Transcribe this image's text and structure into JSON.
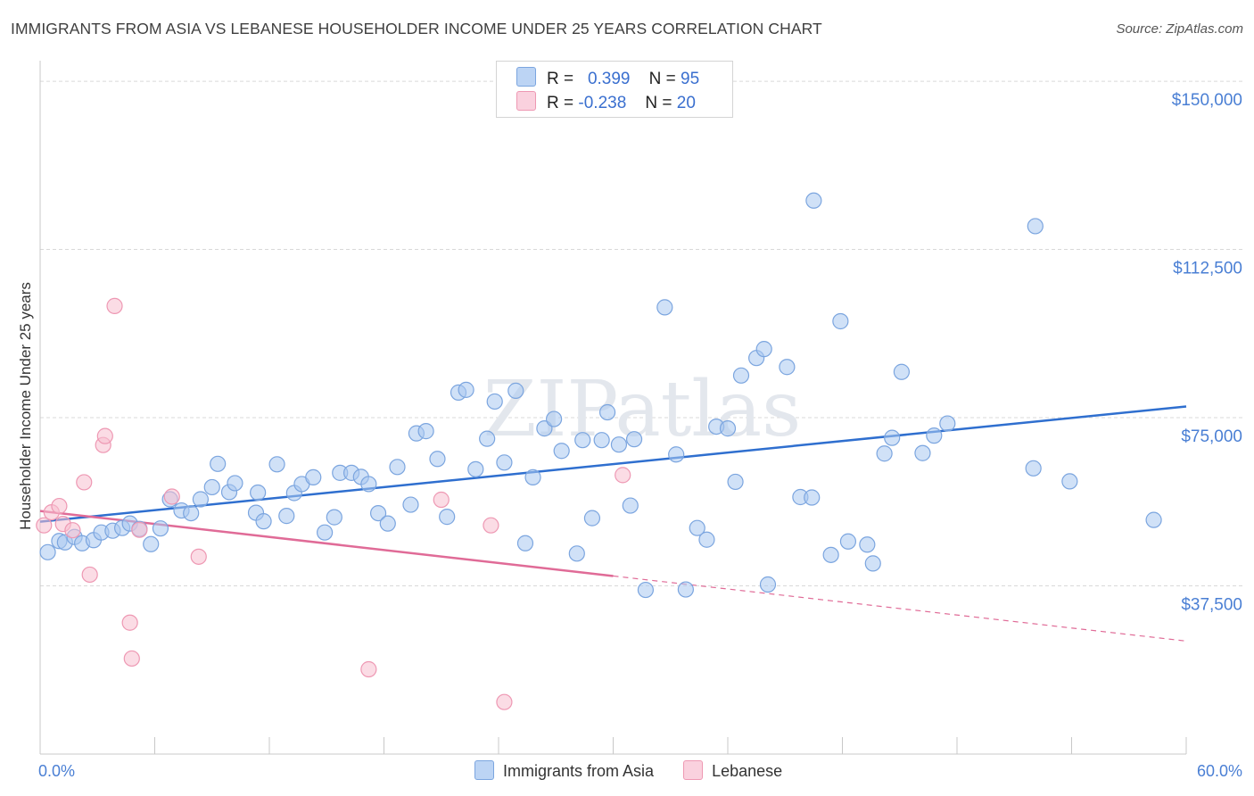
{
  "title": "IMMIGRANTS FROM ASIA VS LEBANESE HOUSEHOLDER INCOME UNDER 25 YEARS CORRELATION CHART",
  "source": "Source: ZipAtlas.com",
  "watermark": "ZIPatlas",
  "legend": {
    "rows": [
      {
        "r_label": "R =",
        "r_value": "0.399",
        "n_label": "N =",
        "n_value": "95"
      },
      {
        "r_label": "R =",
        "r_value": "-0.238",
        "n_label": "N =",
        "n_value": "20"
      }
    ]
  },
  "bottom_legend": {
    "items": [
      {
        "label": "Immigrants from Asia"
      },
      {
        "label": "Lebanese"
      }
    ]
  },
  "colors": {
    "asia_fill": "#a9c8f0",
    "asia_stroke": "#7ba5df",
    "asia_line": "#2f6fcf",
    "leb_fill": "#f7bfd0",
    "leb_stroke": "#ee98b3",
    "leb_line": "#e06b97",
    "tick_label": "#4a7fd4",
    "grid": "#d9d9d9"
  },
  "chart_data": {
    "type": "scatter",
    "title": "IMMIGRANTS FROM ASIA VS LEBANESE HOUSEHOLDER INCOME UNDER 25 YEARS CORRELATION CHART",
    "xlabel": "",
    "ylabel": "Householder Income Under 25 years",
    "xlim": [
      0,
      60
    ],
    "ylim": [
      0,
      153000
    ],
    "x_tick_labels": [
      "0.0%",
      "60.0%"
    ],
    "y_ticks": [
      37500,
      75000,
      112500,
      150000
    ],
    "y_tick_labels": [
      "$37,500",
      "$75,000",
      "$112,500",
      "$150,000"
    ],
    "grid": true,
    "legend_position": "top-center",
    "series": [
      {
        "name": "Immigrants from Asia",
        "points": [
          [
            0.4,
            45000
          ],
          [
            1.0,
            47500
          ],
          [
            1.3,
            47200
          ],
          [
            1.8,
            48400
          ],
          [
            2.2,
            47000
          ],
          [
            2.8,
            47700
          ],
          [
            3.2,
            49400
          ],
          [
            3.8,
            49800
          ],
          [
            4.3,
            50400
          ],
          [
            4.7,
            51400
          ],
          [
            5.2,
            50200
          ],
          [
            5.8,
            46800
          ],
          [
            6.3,
            50300
          ],
          [
            6.8,
            56800
          ],
          [
            7.4,
            54300
          ],
          [
            7.9,
            53700
          ],
          [
            8.4,
            56800
          ],
          [
            9.0,
            59500
          ],
          [
            9.3,
            64700
          ],
          [
            9.9,
            58400
          ],
          [
            10.2,
            60400
          ],
          [
            11.3,
            53800
          ],
          [
            11.4,
            58300
          ],
          [
            11.7,
            51900
          ],
          [
            12.4,
            64600
          ],
          [
            12.9,
            53100
          ],
          [
            13.3,
            58200
          ],
          [
            13.7,
            60200
          ],
          [
            14.3,
            61700
          ],
          [
            14.9,
            49400
          ],
          [
            15.4,
            52800
          ],
          [
            15.7,
            62700
          ],
          [
            16.3,
            62700
          ],
          [
            16.8,
            61800
          ],
          [
            17.2,
            60200
          ],
          [
            17.7,
            53700
          ],
          [
            18.2,
            51400
          ],
          [
            18.7,
            64000
          ],
          [
            19.4,
            55600
          ],
          [
            19.7,
            71500
          ],
          [
            20.2,
            72000
          ],
          [
            20.8,
            65800
          ],
          [
            21.3,
            52900
          ],
          [
            21.9,
            80600
          ],
          [
            22.3,
            81200
          ],
          [
            22.8,
            63500
          ],
          [
            23.4,
            70300
          ],
          [
            23.8,
            78600
          ],
          [
            24.3,
            65000
          ],
          [
            24.9,
            81000
          ],
          [
            25.4,
            47000
          ],
          [
            25.8,
            61700
          ],
          [
            26.4,
            72600
          ],
          [
            26.9,
            74700
          ],
          [
            27.3,
            67600
          ],
          [
            28.1,
            44700
          ],
          [
            28.4,
            70000
          ],
          [
            28.9,
            52600
          ],
          [
            29.4,
            70000
          ],
          [
            29.7,
            76200
          ],
          [
            30.3,
            69000
          ],
          [
            30.9,
            55400
          ],
          [
            31.1,
            70200
          ],
          [
            31.7,
            36600
          ],
          [
            32.7,
            99600
          ],
          [
            33.3,
            66800
          ],
          [
            33.8,
            36700
          ],
          [
            34.4,
            50400
          ],
          [
            34.9,
            47800
          ],
          [
            35.4,
            73000
          ],
          [
            36.0,
            72600
          ],
          [
            36.4,
            60700
          ],
          [
            36.7,
            84400
          ],
          [
            37.5,
            88300
          ],
          [
            37.9,
            90300
          ],
          [
            38.1,
            37800
          ],
          [
            39.1,
            86300
          ],
          [
            39.8,
            57300
          ],
          [
            40.4,
            57200
          ],
          [
            40.5,
            123400
          ],
          [
            41.4,
            44400
          ],
          [
            41.9,
            96500
          ],
          [
            42.3,
            47400
          ],
          [
            43.3,
            46700
          ],
          [
            43.6,
            42500
          ],
          [
            44.2,
            67000
          ],
          [
            44.6,
            70500
          ],
          [
            45.1,
            85200
          ],
          [
            46.2,
            67100
          ],
          [
            46.8,
            71000
          ],
          [
            47.5,
            73700
          ],
          [
            52.0,
            63700
          ],
          [
            52.1,
            117700
          ],
          [
            53.9,
            60800
          ],
          [
            58.3,
            52200
          ]
        ]
      },
      {
        "name": "Lebanese",
        "points": [
          [
            0.2,
            51000
          ],
          [
            0.6,
            53900
          ],
          [
            1.0,
            55300
          ],
          [
            1.2,
            51300
          ],
          [
            1.7,
            49900
          ],
          [
            2.3,
            60600
          ],
          [
            2.6,
            40000
          ],
          [
            3.3,
            68900
          ],
          [
            3.4,
            70900
          ],
          [
            3.9,
            99900
          ],
          [
            4.7,
            29300
          ],
          [
            4.8,
            21300
          ],
          [
            5.2,
            50000
          ],
          [
            6.9,
            57400
          ],
          [
            8.3,
            44000
          ],
          [
            17.2,
            18900
          ],
          [
            21.0,
            56700
          ],
          [
            23.6,
            51000
          ],
          [
            24.3,
            11600
          ],
          [
            30.5,
            62200
          ]
        ]
      }
    ],
    "trendlines": [
      {
        "series": "Immigrants from Asia",
        "x": [
          0,
          60
        ],
        "y": [
          51800,
          77500
        ],
        "style": "solid"
      },
      {
        "series": "Lebanese",
        "x": [
          0,
          30
        ],
        "y": [
          54200,
          39700
        ],
        "style": "solid"
      },
      {
        "series": "Lebanese",
        "x": [
          30,
          60
        ],
        "y": [
          39700,
          25200
        ],
        "style": "dashed"
      }
    ]
  }
}
